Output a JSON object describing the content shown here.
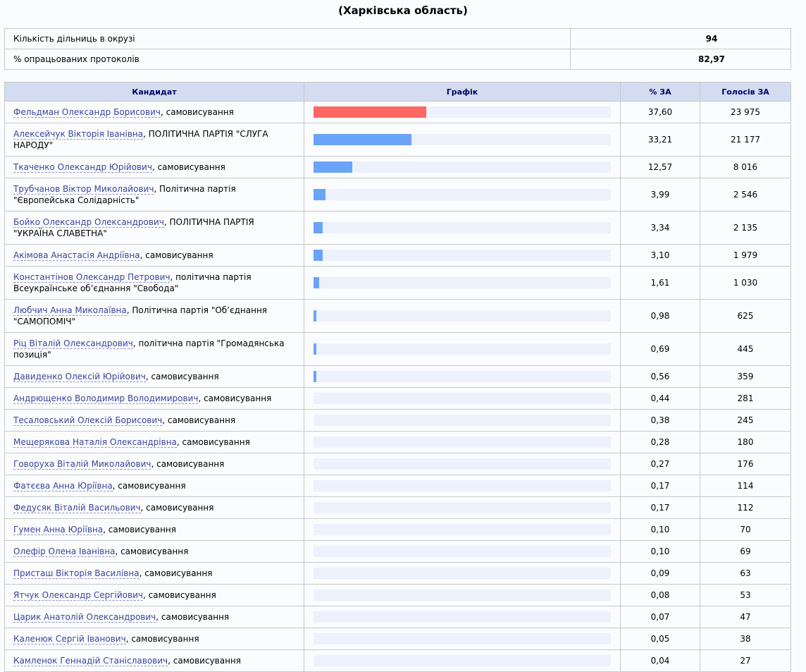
{
  "title": "(Харківська область)",
  "summary": [
    {
      "label": "Кількість дільниць в окрузі",
      "value": "94"
    },
    {
      "label": "% опрацьованих протоколів",
      "value": "82,97"
    }
  ],
  "headers": {
    "candidate": "Кандидат",
    "chart": "Графік",
    "pct": "% ЗА",
    "votes": "Голосів ЗА"
  },
  "colors": {
    "leader_bar": "#ff6666",
    "bar": "#6aa4f8",
    "track": "#edf1fc",
    "header_bg": "#d3dcf0"
  },
  "candidates": [
    {
      "name": "Фельдман Олександр Борисович",
      "party": ", самовисування",
      "pct": 37.6,
      "pct_text": "37,60",
      "votes": "23 975",
      "leader": true
    },
    {
      "name": "Алексейчук Вікторія Іванівна",
      "party": ", ПОЛІТИЧНА ПАРТІЯ \"СЛУГА НАРОДУ\"",
      "pct": 33.21,
      "pct_text": "33,21",
      "votes": "21 177"
    },
    {
      "name": "Ткаченко Олександр Юрійович",
      "party": ", самовисування",
      "pct": 12.57,
      "pct_text": "12,57",
      "votes": "8 016"
    },
    {
      "name": "Трубчанов Віктор Миколайович",
      "party": ", Політична партія \"Європейська Солідарність\"",
      "pct": 3.99,
      "pct_text": "3,99",
      "votes": "2 546"
    },
    {
      "name": "Бойко Олександр Олександрович",
      "party": ", ПОЛІТИЧНА ПАРТІЯ \"УКРАЇНА СЛАВЕТНА\"",
      "pct": 3.34,
      "pct_text": "3,34",
      "votes": "2 135"
    },
    {
      "name": "Акімова Анастасія Андріївна",
      "party": ", самовисування",
      "pct": 3.1,
      "pct_text": "3,10",
      "votes": "1 979"
    },
    {
      "name": "Константінов Олександр Петрович",
      "party": ", політична партія Всеукраїнське об’єднання \"Свобода\"",
      "pct": 1.61,
      "pct_text": "1,61",
      "votes": "1 030"
    },
    {
      "name": "Любчич Анна Миколаївна",
      "party": ", Політична партія \"Об’єднання \"САМОПОМІЧ\"",
      "pct": 0.98,
      "pct_text": "0,98",
      "votes": "625"
    },
    {
      "name": "Ріц Віталій Олександрович",
      "party": ", політична партія \"Громадянська позиція\"",
      "pct": 0.69,
      "pct_text": "0,69",
      "votes": "445"
    },
    {
      "name": "Давиденко Олексій Юрійович",
      "party": ", самовисування",
      "pct": 0.56,
      "pct_text": "0,56",
      "votes": "359"
    },
    {
      "name": "Андрющенко Володимир Володимирович",
      "party": ", самовисування",
      "pct": 0.44,
      "pct_text": "0,44",
      "votes": "281"
    },
    {
      "name": "Тесаловський Олексій Борисович",
      "party": ", самовисування",
      "pct": 0.38,
      "pct_text": "0,38",
      "votes": "245"
    },
    {
      "name": "Мещерякова Наталія Олександрівна",
      "party": ", самовисування",
      "pct": 0.28,
      "pct_text": "0,28",
      "votes": "180"
    },
    {
      "name": "Говоруха Віталій Миколайович",
      "party": ", самовисування",
      "pct": 0.27,
      "pct_text": "0,27",
      "votes": "176"
    },
    {
      "name": "Фатєєва Анна Юріївна",
      "party": ", самовисування",
      "pct": 0.17,
      "pct_text": "0,17",
      "votes": "114"
    },
    {
      "name": "Федусяк Віталій Васильович",
      "party": ", самовисування",
      "pct": 0.17,
      "pct_text": "0,17",
      "votes": "112"
    },
    {
      "name": "Гумен Анна Юріївна",
      "party": ", самовисування",
      "pct": 0.1,
      "pct_text": "0,10",
      "votes": "70"
    },
    {
      "name": "Олефір Олена Іванівна",
      "party": ", самовисування",
      "pct": 0.1,
      "pct_text": "0,10",
      "votes": "69"
    },
    {
      "name": "Присташ Вікторія Василівна",
      "party": ", самовисування",
      "pct": 0.09,
      "pct_text": "0,09",
      "votes": "63"
    },
    {
      "name": "Ятчук Олександр Сергійович",
      "party": ", самовисування",
      "pct": 0.08,
      "pct_text": "0,08",
      "votes": "53"
    },
    {
      "name": "Царик Анатолій Олександрович",
      "party": ", самовисування",
      "pct": 0.07,
      "pct_text": "0,07",
      "votes": "47"
    },
    {
      "name": "Каленюк Сергій Іванович",
      "party": ", самовисування",
      "pct": 0.05,
      "pct_text": "0,05",
      "votes": "38"
    },
    {
      "name": "Камленок Геннадій Станіславович",
      "party": ", самовисування",
      "pct": 0.04,
      "pct_text": "0,04",
      "votes": "27"
    }
  ]
}
